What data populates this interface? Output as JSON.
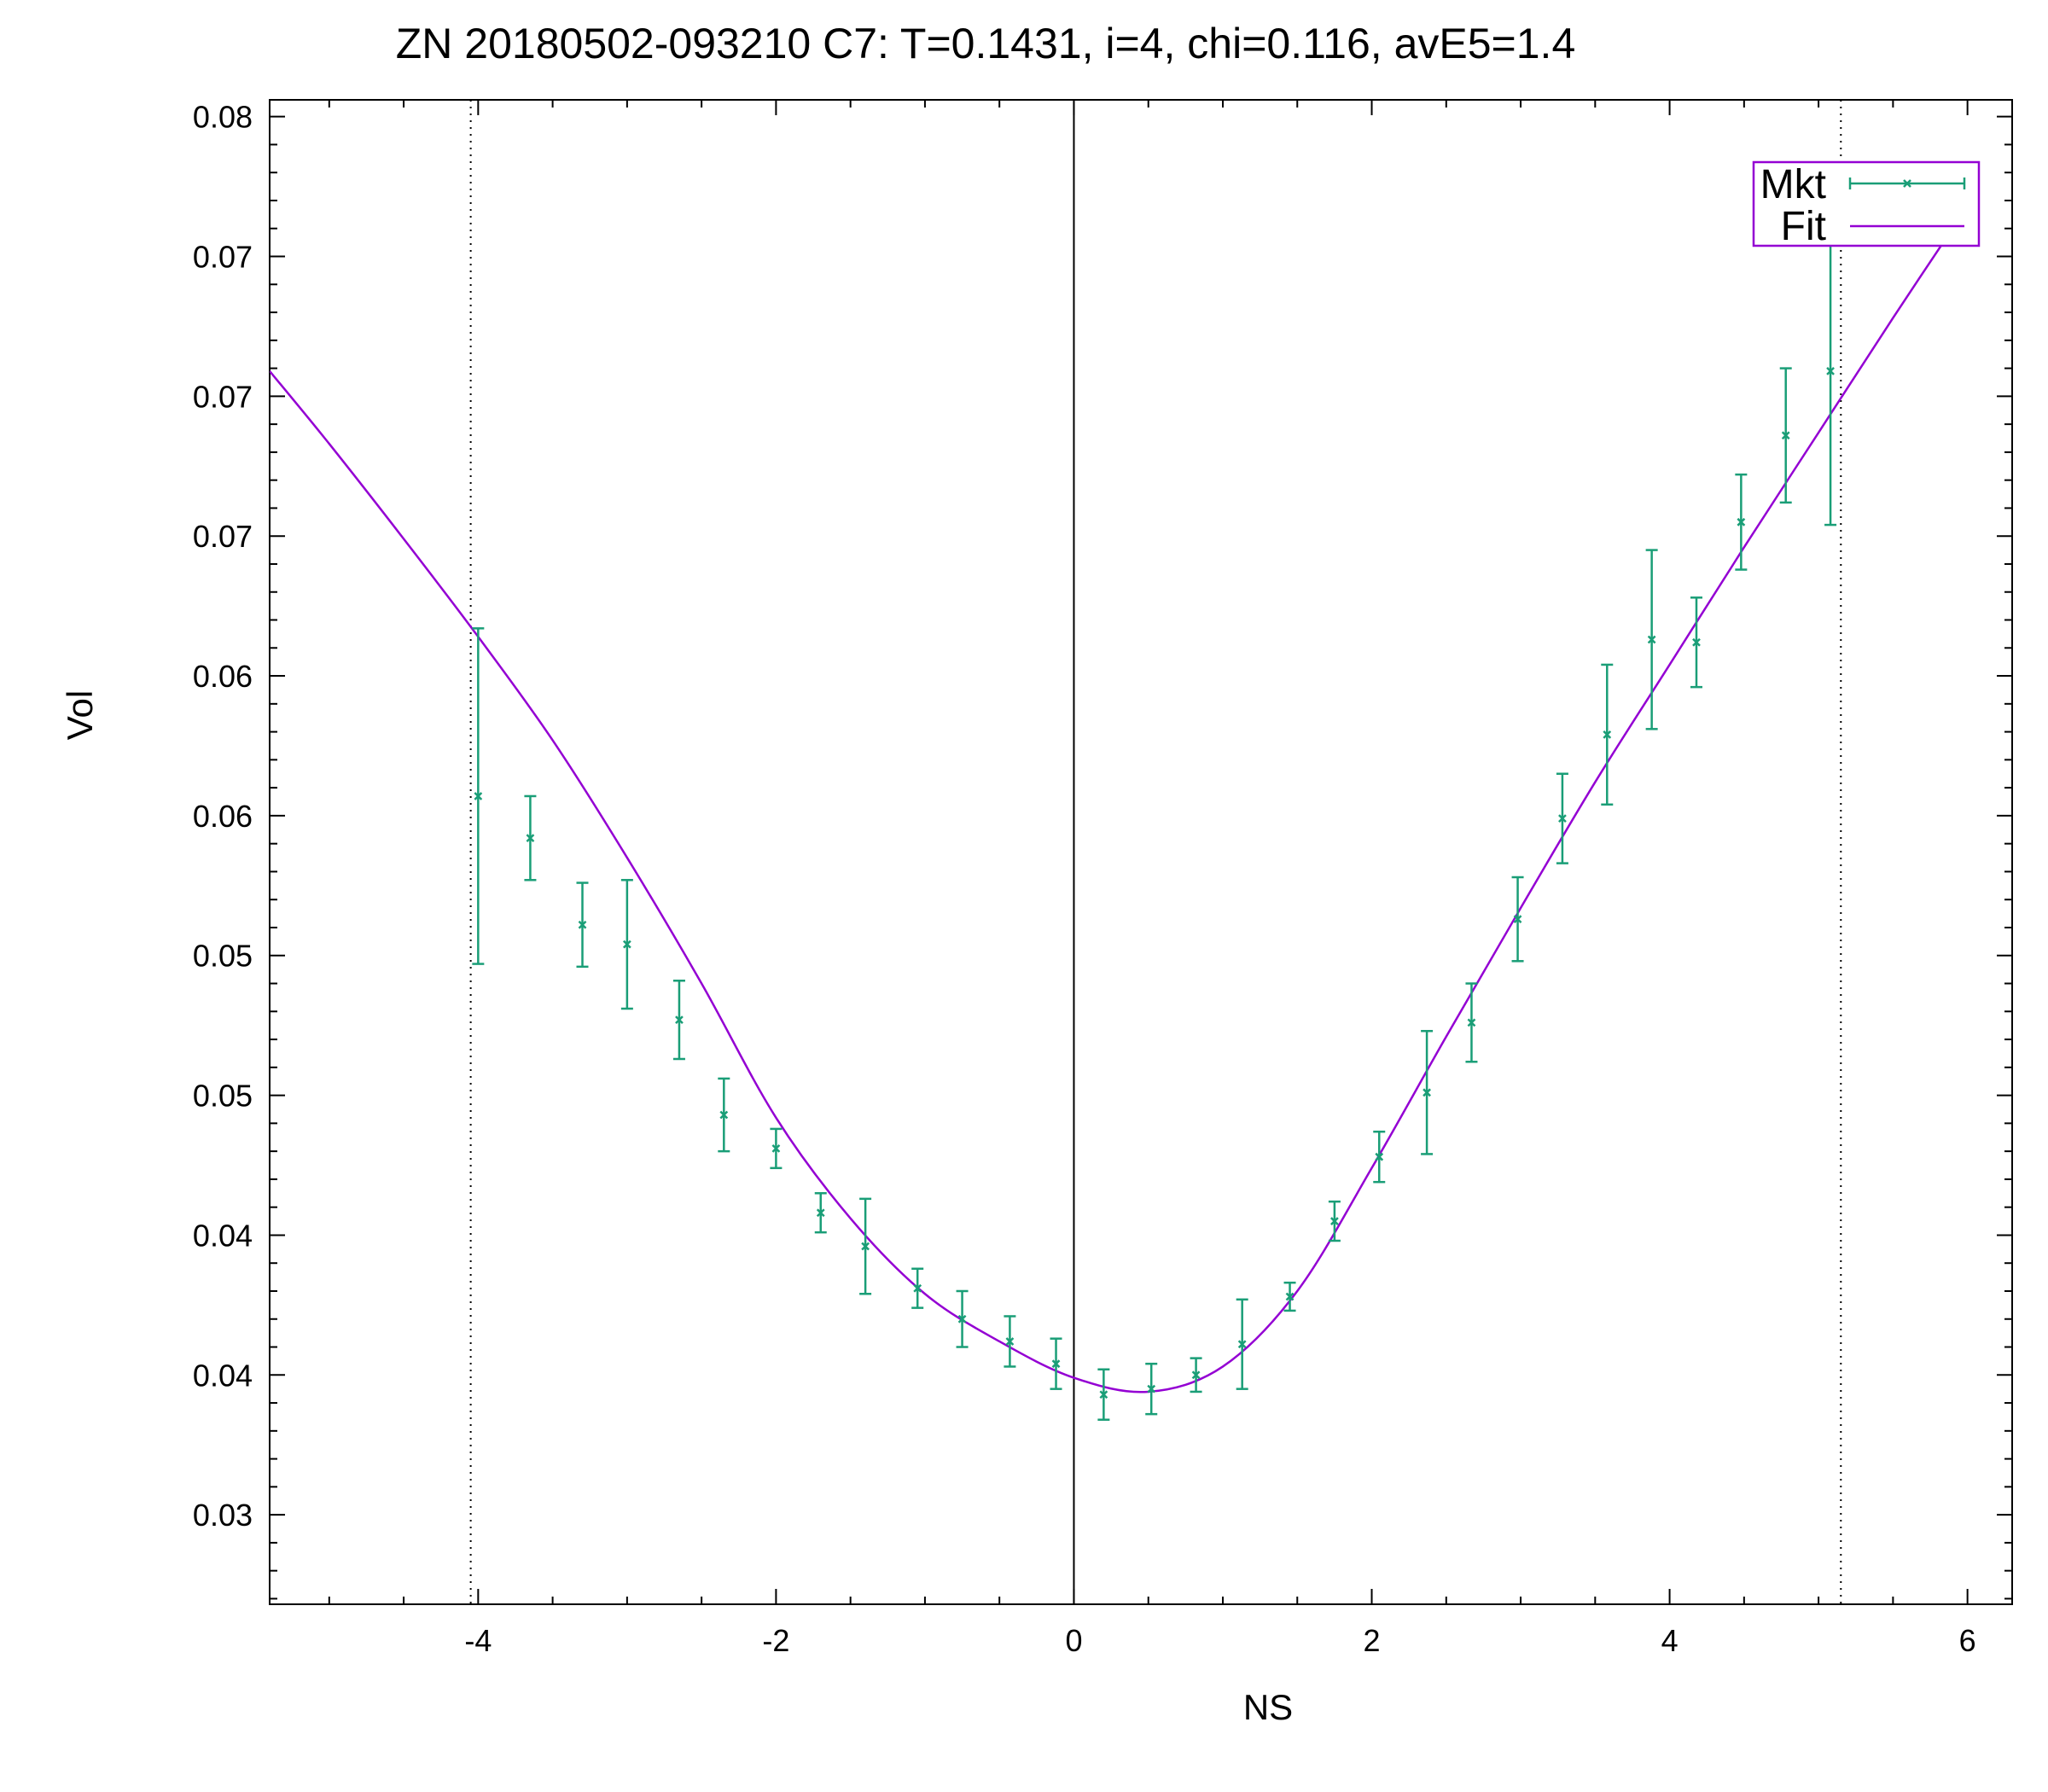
{
  "chart_data": {
    "type": "scatter",
    "title": "ZN 20180502-093210  C7:  T=0.1431, i=4, chi=0.116, avE5=1.4",
    "xlabel": "NS",
    "ylabel": "Vol",
    "xlim": [
      -5.4,
      6.3
    ],
    "ylim": [
      0.0268,
      0.0806
    ],
    "x_ticks": [
      -4,
      -2,
      0,
      2,
      4,
      6
    ],
    "x_tick_labels": [
      "-4",
      "-2",
      "0",
      "2",
      "4",
      "6"
    ],
    "y_ticks": [
      0.03,
      0.035,
      0.04,
      0.045,
      0.05,
      0.055,
      0.06,
      0.065,
      0.07,
      0.075,
      0.08
    ],
    "y_tick_labels": [
      "0.03",
      "0.04",
      "0.04",
      "0.05",
      "0.05",
      "0.06",
      "0.06",
      "0.07",
      "0.07",
      "0.07",
      "0.08"
    ],
    "vertical_lines": [
      {
        "x": -4.05,
        "style": "dotted"
      },
      {
        "x": 0,
        "style": "solid"
      },
      {
        "x": 5.15,
        "style": "dotted"
      }
    ],
    "grid": false,
    "legend_position": "top-right",
    "series": [
      {
        "name": "Mkt",
        "kind": "errorbars",
        "color": "#1a9e77",
        "x": [
          -4.0,
          -3.65,
          -3.3,
          -3.0,
          -2.65,
          -2.35,
          -2.0,
          -1.7,
          -1.4,
          -1.05,
          -0.75,
          -0.43,
          -0.12,
          0.2,
          0.52,
          0.82,
          1.13,
          1.45,
          1.75,
          2.05,
          2.37,
          2.67,
          2.98,
          3.28,
          3.58,
          3.88,
          4.18,
          4.48,
          4.78,
          5.08
        ],
        "y": [
          0.0557,
          0.0542,
          0.0511,
          0.0504,
          0.0477,
          0.0443,
          0.0431,
          0.0408,
          0.0396,
          0.0381,
          0.037,
          0.0362,
          0.0354,
          0.0343,
          0.0345,
          0.035,
          0.0361,
          0.0378,
          0.0405,
          0.0428,
          0.0451,
          0.0476,
          0.0513,
          0.0549,
          0.0579,
          0.0613,
          0.0612,
          0.0655,
          0.0686,
          0.0709
        ],
        "err": [
          0.006,
          0.0015,
          0.0015,
          0.0023,
          0.0014,
          0.0013,
          0.0007,
          0.0007,
          0.0017,
          0.0007,
          0.001,
          0.0009,
          0.0009,
          0.0009,
          0.0009,
          0.0006,
          0.0016,
          0.0005,
          0.0007,
          0.0009,
          0.0022,
          0.0014,
          0.0015,
          0.0016,
          0.0025,
          0.0032,
          0.0016,
          0.0017,
          0.0024,
          0.0055
        ]
      },
      {
        "name": "Fit",
        "kind": "line",
        "color": "#9400d3",
        "x": [
          -5.4,
          -5.0,
          -4.5,
          -4.0,
          -3.5,
          -3.0,
          -2.5,
          -2.0,
          -1.5,
          -1.0,
          -0.5,
          0.0,
          0.5,
          1.0,
          1.5,
          2.0,
          2.5,
          3.0,
          3.5,
          4.0,
          4.5,
          5.0,
          5.5,
          6.0
        ],
        "y": [
          0.0709,
          0.0683,
          0.0649,
          0.0614,
          0.0577,
          0.0535,
          0.049,
          0.0442,
          0.0406,
          0.0379,
          0.0362,
          0.0349,
          0.0344,
          0.0353,
          0.038,
          0.0424,
          0.0471,
          0.0517,
          0.0562,
          0.0604,
          0.0646,
          0.0687,
          0.0728,
          0.0768
        ]
      }
    ]
  }
}
